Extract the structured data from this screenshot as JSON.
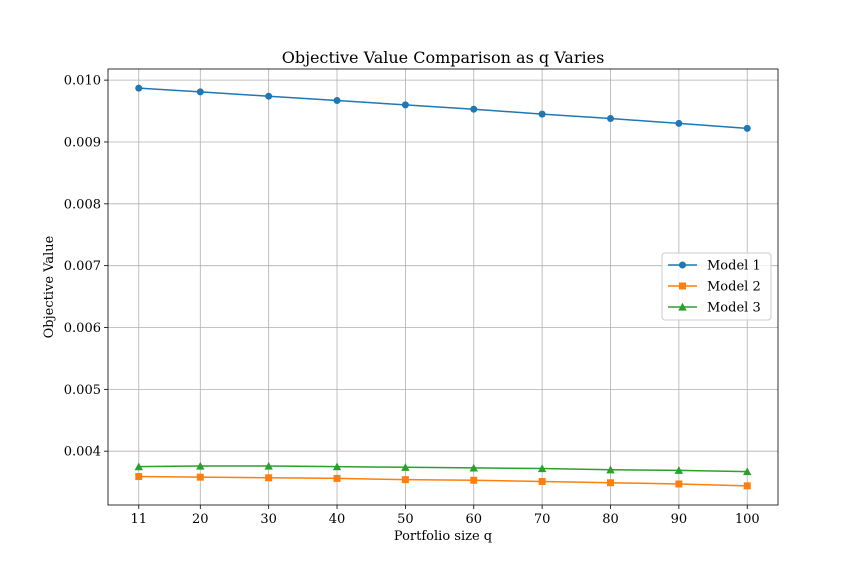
{
  "chart_data": {
    "type": "line",
    "title": "Objective Value Comparison as q Varies",
    "xlabel": "Portfolio size q",
    "ylabel": "Objective Value",
    "x": [
      11,
      20,
      30,
      40,
      50,
      60,
      70,
      80,
      90,
      100
    ],
    "x_tick_labels": [
      "11",
      "20",
      "30",
      "40",
      "50",
      "60",
      "70",
      "80",
      "90",
      "100"
    ],
    "y_ticks": [
      0.004,
      0.005,
      0.006,
      0.007,
      0.008,
      0.009,
      0.01
    ],
    "y_tick_labels": [
      "0.004",
      "0.005",
      "0.006",
      "0.007",
      "0.008",
      "0.009",
      "0.010"
    ],
    "ylim": [
      0.00313,
      0.01018
    ],
    "grid": true,
    "legend_position": "center-right",
    "series": [
      {
        "name": "Model 1",
        "color": "#1f77b4",
        "marker": "circle",
        "values": [
          0.00987,
          0.00981,
          0.00974,
          0.00967,
          0.0096,
          0.00953,
          0.00945,
          0.00938,
          0.0093,
          0.00922
        ]
      },
      {
        "name": "Model 2",
        "color": "#ff7f0e",
        "marker": "square",
        "values": [
          0.00359,
          0.00358,
          0.00357,
          0.00356,
          0.00354,
          0.00353,
          0.00351,
          0.00349,
          0.00347,
          0.00344
        ]
      },
      {
        "name": "Model 3",
        "color": "#2ca02c",
        "marker": "triangle",
        "values": [
          0.00375,
          0.00376,
          0.00376,
          0.00375,
          0.00374,
          0.00373,
          0.00372,
          0.0037,
          0.00369,
          0.00367
        ]
      }
    ]
  }
}
